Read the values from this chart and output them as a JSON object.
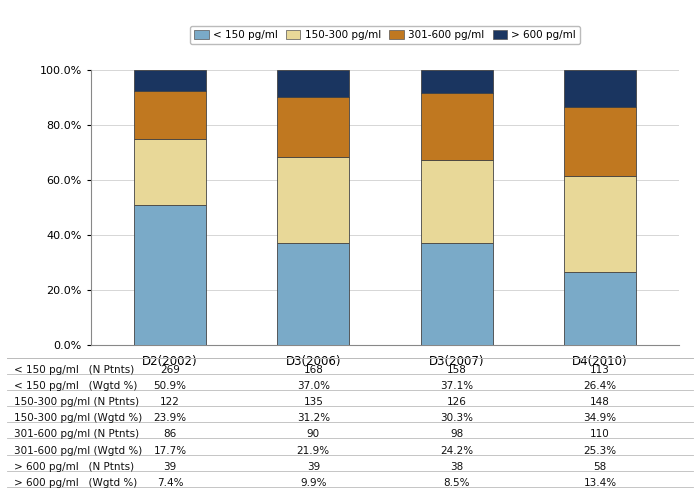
{
  "categories": [
    "D2(2002)",
    "D3(2006)",
    "D3(2007)",
    "D4(2010)"
  ],
  "segments": {
    "< 150 pg/ml": [
      50.9,
      37.0,
      37.1,
      26.4
    ],
    "150-300 pg/ml": [
      23.9,
      31.2,
      30.3,
      34.9
    ],
    "301-600 pg/ml": [
      17.7,
      21.9,
      24.2,
      25.3
    ],
    "> 600 pg/ml": [
      7.4,
      9.9,
      8.5,
      13.4
    ]
  },
  "colors": {
    "< 150 pg/ml": "#7aaac8",
    "150-300 pg/ml": "#e8d898",
    "301-600 pg/ml": "#c07820",
    "> 600 pg/ml": "#1a3560"
  },
  "table_rows_labels": [
    "< 150 pg/ml   (N Ptnts)",
    "< 150 pg/ml   (Wgtd %)",
    "150-300 pg/ml (N Ptnts)",
    "150-300 pg/ml (Wgtd %)",
    "301-600 pg/ml (N Ptnts)",
    "301-600 pg/ml (Wgtd %)",
    "> 600 pg/ml   (N Ptnts)",
    "> 600 pg/ml   (Wgtd %)"
  ],
  "table_values": [
    [
      269,
      168,
      158,
      113
    ],
    [
      "50.9%",
      "37.0%",
      "37.1%",
      "26.4%"
    ],
    [
      122,
      135,
      126,
      148
    ],
    [
      "23.9%",
      "31.2%",
      "30.3%",
      "34.9%"
    ],
    [
      86,
      90,
      98,
      110
    ],
    [
      "17.7%",
      "21.9%",
      "24.2%",
      "25.3%"
    ],
    [
      39,
      39,
      38,
      58
    ],
    [
      "7.4%",
      "9.9%",
      "8.5%",
      "13.4%"
    ]
  ],
  "ylim": [
    0,
    100
  ],
  "yticks": [
    0,
    20,
    40,
    60,
    80,
    100
  ],
  "ytick_labels": [
    "0.0%",
    "20.0%",
    "40.0%",
    "60.0%",
    "80.0%",
    "100.0%"
  ],
  "bar_width": 0.5,
  "chart_bg": "#ffffff",
  "grid_color": "#d0d0d0",
  "border_color": "#888888"
}
